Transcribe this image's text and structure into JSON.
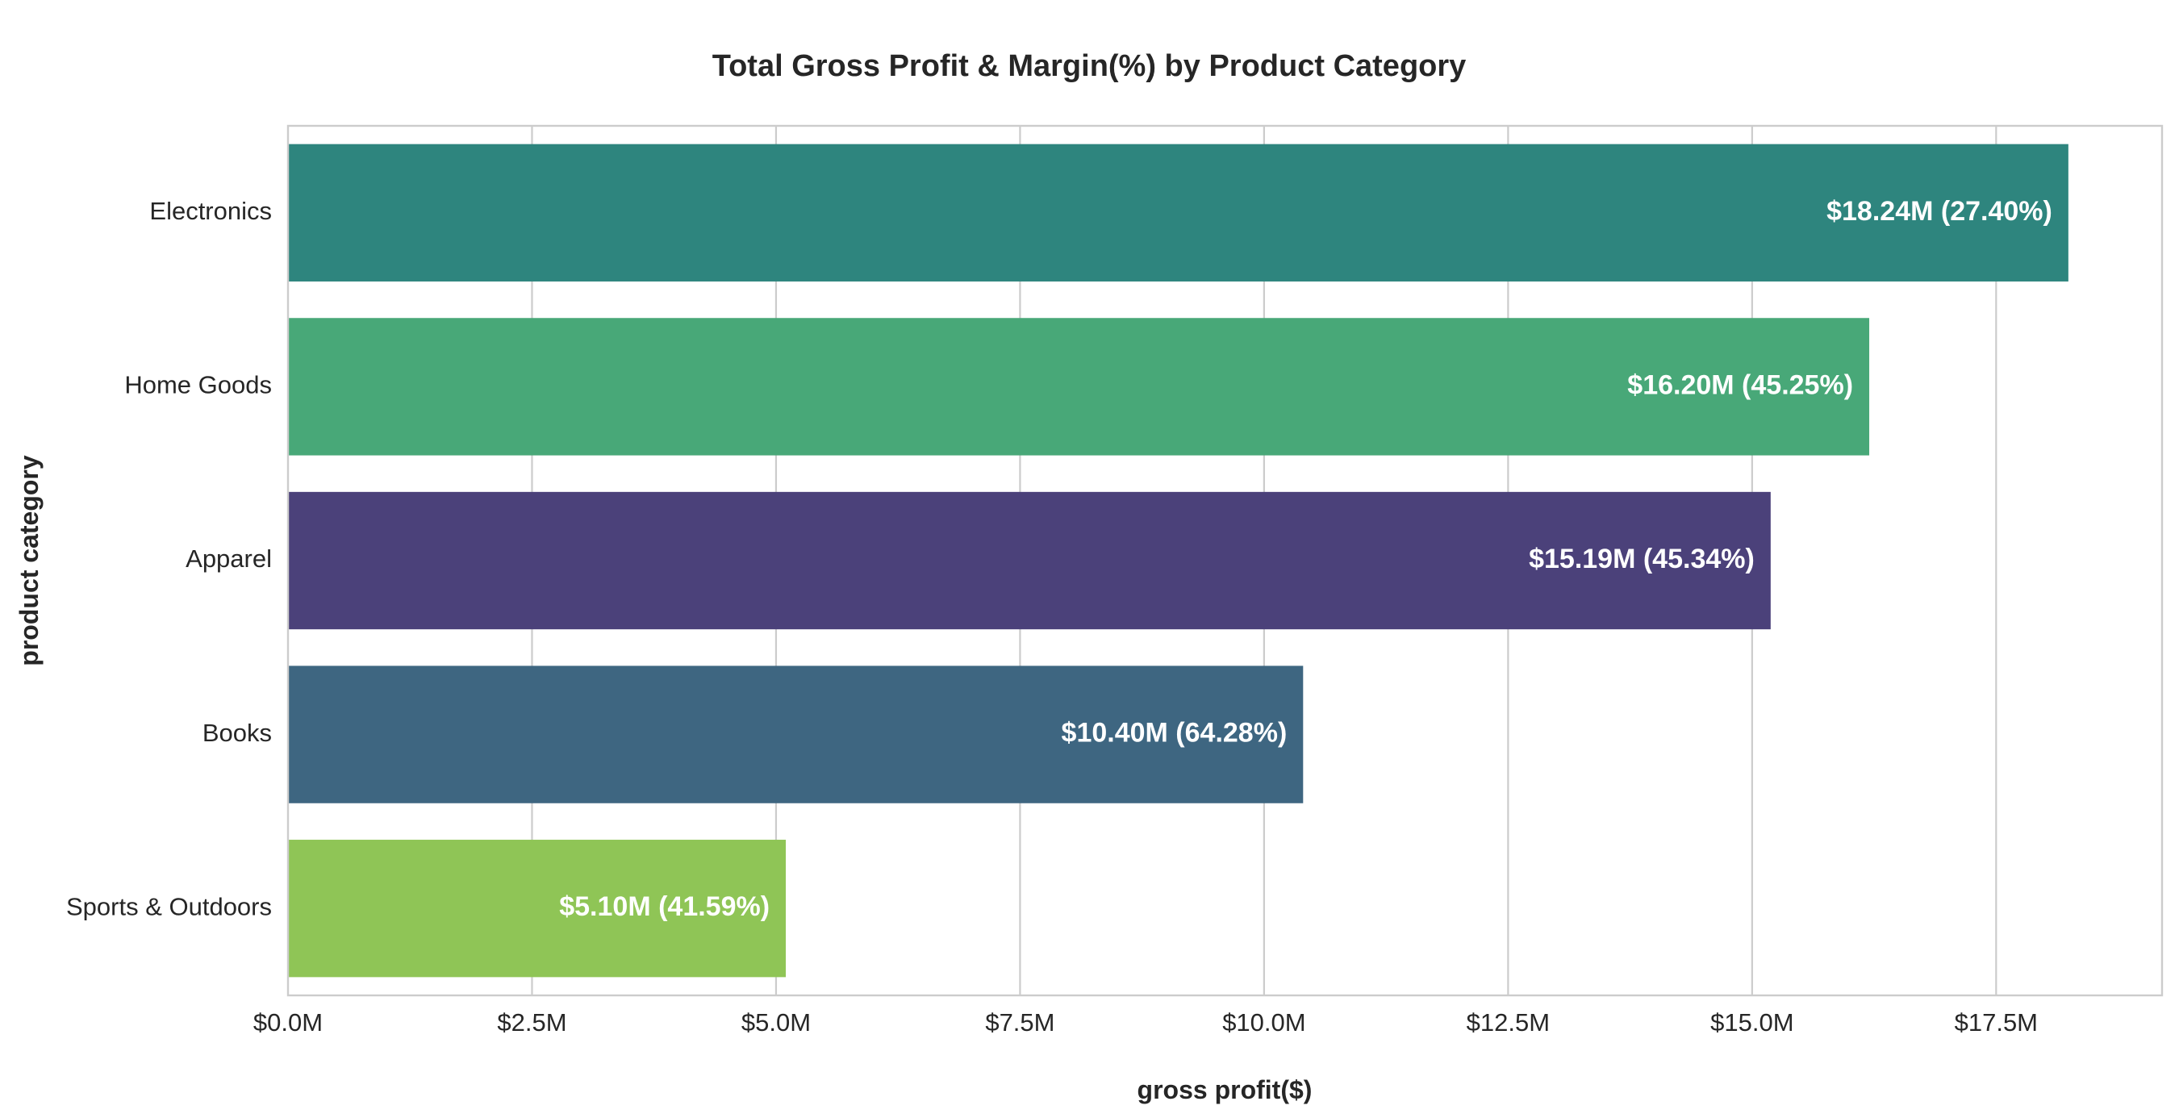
{
  "chart_data": {
    "type": "bar",
    "orientation": "horizontal",
    "title": "Total Gross Profit & Margin(%) by Product Category",
    "xlabel": "gross profit($)",
    "ylabel": "product category",
    "xlim": [
      0,
      19.2
    ],
    "x_unit": "$M",
    "x_ticks": [
      0,
      2.5,
      5,
      7.5,
      10,
      12.5,
      15,
      17.5
    ],
    "x_tick_labels": [
      "$0.0M",
      "$2.5M",
      "$5.0M",
      "$7.5M",
      "$10.0M",
      "$12.5M",
      "$15.0M",
      "$17.5M"
    ],
    "grid": true,
    "categories": [
      "Electronics",
      "Home Goods",
      "Apparel",
      "Books",
      "Sports & Outdoors"
    ],
    "values": [
      18.24,
      16.2,
      15.19,
      10.4,
      5.1
    ],
    "margins_percent": [
      27.4,
      45.25,
      45.34,
      64.28,
      41.59
    ],
    "data_labels": [
      "$18.24M (27.40%)",
      "$16.20M (45.25%)",
      "$15.19M (45.34%)",
      "$10.40M (64.28%)",
      "$5.10M (41.59%)"
    ],
    "colors": [
      "#2e857e",
      "#48a878",
      "#4b417a",
      "#3e6681",
      "#8fc556"
    ]
  }
}
